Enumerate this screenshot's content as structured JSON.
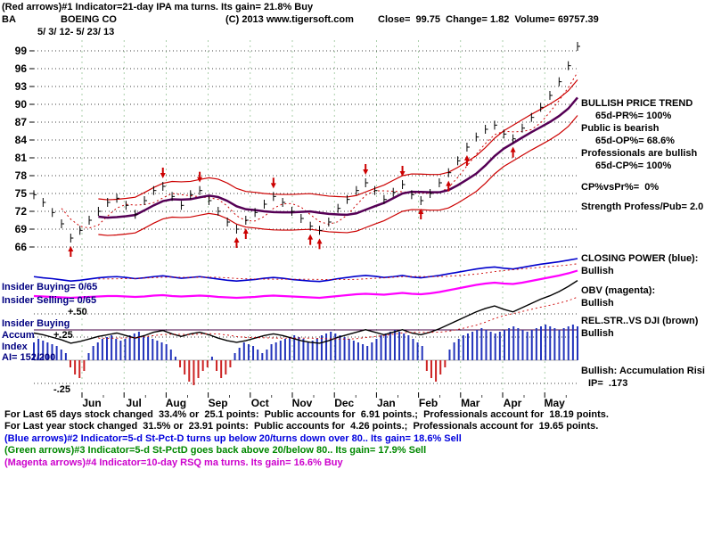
{
  "header": {
    "line1": "(Red arrows)#1 Indicator=21-day IPA ma turns. Its gain= 21.8% Buy",
    "symbol": "BA",
    "company": "BOEING CO",
    "copyright": "(C) 2013 www.tigersoft.com",
    "quote": "Close=  99.75  Change= 1.82  Volume= 69757.39",
    "date_range": "5/ 3/ 12- 5/ 23/ 13"
  },
  "right_panel": {
    "trend_title": "BULLISH PRICE TREND",
    "pr_pct": "65d-PR%= 100%",
    "public_status": "Public is bearish",
    "op_pct": "65d-OP%= 68.6%",
    "professionals_status": "Professionals are bullish",
    "cp_pct": "65d-CP%= 100%",
    "cp_vs_pr": "CP%vsPr%=  0%",
    "strength_ratio": "Strength Profess/Pub= 2.0",
    "closing_power_title": "CLOSING POWER (blue):",
    "closing_power_status": "Bullish",
    "obv_title": "OBV (magenta):",
    "obv_status": "Bullish",
    "relstr_title": "REL.STR..VS DJI (brown)",
    "relstr_status": "Bullish",
    "accum_status": "Bullish: Accumulation Risi",
    "ip_value": "IP=  .173"
  },
  "left_panel": {
    "insider_buying": "Insider Buying= 0/65",
    "insider_selling": "Insider Selling= 0/65",
    "plus50": "+.50",
    "insider_buying2": "Insider Buying",
    "accum": "Accum",
    "plus25": "+.25",
    "index": "Index",
    "ai": "AI= 152/200",
    "minus25": "-.25"
  },
  "footer": {
    "f1": "For Last 65 days stock changed  33.4% or  25.1 points:  Public accounts for  6.91 points.;  Professionals account for  18.19 points.",
    "f2": "For Last year stock changed  31.5% or  23.91 points:  Public accounts for  4.26 points.;  Professionals account for  19.65 points.",
    "f3": "(Blue arrows)#2 Indicator=5-d St-Pct-D turns up below 20/turns down over 80.. Its gain= 18.6% Sell",
    "f4": "(Green arrows)#3 Indicator=5-d St-PctD goes back above 20/below 80.. Its gain= 17.9% Sell",
    "f5": "(Magenta arrows)#4 Indicator=10-day RSQ ma turns. Its gain= 16.6% Buy"
  },
  "colors": {
    "blue_text": "#0000dd",
    "green_text": "#008800",
    "magenta_text": "#cc00cc",
    "navy_text": "#000080",
    "grid": "#000000",
    "month_separator": "#88bb88"
  },
  "chart_data": {
    "type": "line",
    "title": "BOEING CO daily chart with Closing Power, OBV, Rel.Str. and Accumulation Index panels, 5/3/12-5/23/13",
    "months": [
      "Jun",
      "Jul",
      "Aug",
      "Sep",
      "Oct",
      "Nov",
      "Dec",
      "Jan",
      "Feb",
      "Mar",
      "Apr",
      "May"
    ],
    "panels": [
      {
        "name": "price",
        "type": "ohlc",
        "ylabel": "Price",
        "ylim": [
          66,
          100
        ],
        "yticks": [
          99,
          96,
          93,
          90,
          87,
          84,
          81,
          78,
          75,
          72,
          69,
          66
        ],
        "close": [
          74.8,
          73.5,
          71.8,
          69.9,
          67.5,
          68.8,
          70.5,
          72.0,
          73.5,
          74.2,
          73.0,
          71.5,
          73.8,
          75.5,
          76.2,
          74.5,
          73.0,
          74.8,
          75.5,
          73.8,
          72.0,
          70.2,
          69.0,
          70.5,
          71.8,
          73.2,
          74.5,
          73.5,
          72.0,
          70.8,
          69.5,
          68.8,
          70.2,
          72.5,
          74.0,
          75.5,
          76.8,
          75.5,
          74.0,
          75.2,
          76.5,
          74.8,
          73.8,
          75.0,
          76.8,
          78.5,
          80.5,
          82.8,
          84.5,
          85.8,
          86.5,
          85.0,
          84.2,
          86.0,
          87.8,
          89.5,
          91.5,
          93.8,
          96.5,
          99.75
        ],
        "band_offset": 3.0,
        "band_color": "#cc0000",
        "ma_color": "#550055",
        "bar_color": "#000000",
        "arrow_color": "#cc0000",
        "arrows_up": [
          4,
          22,
          23,
          30,
          31,
          42,
          45,
          47,
          52
        ],
        "arrows_down": [
          14,
          18,
          26,
          36,
          40
        ]
      },
      {
        "name": "closing_power",
        "type": "line",
        "color": "#0000cc",
        "values": [
          55,
          52,
          50,
          47,
          44,
          46,
          49,
          52,
          54,
          55,
          53,
          50,
          52,
          55,
          57,
          54,
          51,
          53,
          55,
          52,
          49,
          46,
          44,
          46,
          48,
          51,
          53,
          51,
          48,
          46,
          44,
          43,
          46,
          50,
          53,
          56,
          58,
          56,
          53,
          55,
          58,
          54,
          52,
          55,
          58,
          62,
          66,
          70,
          74,
          77,
          79,
          76,
          74,
          78,
          82,
          86,
          89,
          92,
          96,
          100
        ]
      },
      {
        "name": "obv",
        "type": "line",
        "color": "#ff00ff",
        "values": [
          40,
          39,
          38,
          37,
          36,
          37,
          38,
          39,
          40,
          40,
          39,
          38,
          39,
          41,
          42,
          40,
          39,
          40,
          41,
          40,
          38,
          37,
          36,
          37,
          38,
          40,
          41,
          40,
          39,
          38,
          37,
          36,
          38,
          40,
          42,
          44,
          45,
          44,
          43,
          45,
          47,
          45,
          44,
          46,
          49,
          53,
          57,
          61,
          65,
          68,
          70,
          68,
          67,
          70,
          74,
          78,
          82,
          86,
          91,
          97
        ]
      },
      {
        "name": "rel_strength_vs_dji",
        "type": "line",
        "color": "#000000",
        "values": [
          30,
          28,
          25,
          22,
          18,
          20,
          23,
          26,
          28,
          30,
          27,
          24,
          27,
          31,
          33,
          29,
          26,
          29,
          31,
          28,
          24,
          21,
          19,
          21,
          24,
          27,
          29,
          27,
          24,
          21,
          19,
          18,
          21,
          25,
          28,
          31,
          34,
          31,
          28,
          31,
          34,
          30,
          28,
          31,
          35,
          40,
          45,
          50,
          55,
          59,
          62,
          58,
          55,
          60,
          65,
          70,
          74,
          79,
          85,
          92
        ]
      },
      {
        "name": "accumulation_index",
        "type": "bar",
        "pos_color": "#2233bb",
        "neg_color": "#cc2222",
        "values": [
          0.5,
          0.6,
          0.55,
          0.5,
          0.45,
          0.4,
          0.3,
          0.2,
          -0.2,
          -0.4,
          -0.5,
          -0.3,
          0.2,
          0.4,
          0.5,
          0.6,
          0.65,
          0.7,
          0.6,
          0.55,
          0.6,
          0.7,
          0.75,
          0.8,
          0.7,
          0.65,
          0.6,
          0.55,
          0.5,
          0.45,
          0.3,
          0.1,
          -0.2,
          -0.4,
          -0.6,
          -0.7,
          -0.5,
          -0.3,
          -0.2,
          0.1,
          -0.3,
          -0.5,
          -0.4,
          -0.2,
          0.2,
          0.35,
          0.5,
          0.45,
          0.4,
          0.3,
          0.2,
          0.3,
          0.45,
          0.5,
          0.55,
          0.6,
          0.65,
          0.7,
          0.65,
          0.6,
          0.5,
          0.55,
          0.6,
          0.7,
          0.75,
          0.8,
          0.75,
          0.7,
          0.65,
          0.6,
          0.55,
          0.5,
          0.45,
          0.4,
          0.5,
          0.6,
          0.7,
          0.75,
          0.8,
          0.85,
          0.8,
          0.75,
          0.7,
          0.6,
          0.5,
          0.4,
          -0.3,
          -0.5,
          -0.6,
          -0.4,
          -0.2,
          0.3,
          0.5,
          0.6,
          0.7,
          0.75,
          0.8,
          0.85,
          0.9,
          0.85,
          0.8,
          0.75,
          0.8,
          0.85,
          0.9,
          0.95,
          0.9,
          0.85,
          0.8,
          0.85,
          0.9,
          0.95,
          1.0,
          0.95,
          0.9,
          0.85,
          0.9,
          0.95,
          1.0,
          0.95
        ]
      }
    ]
  }
}
